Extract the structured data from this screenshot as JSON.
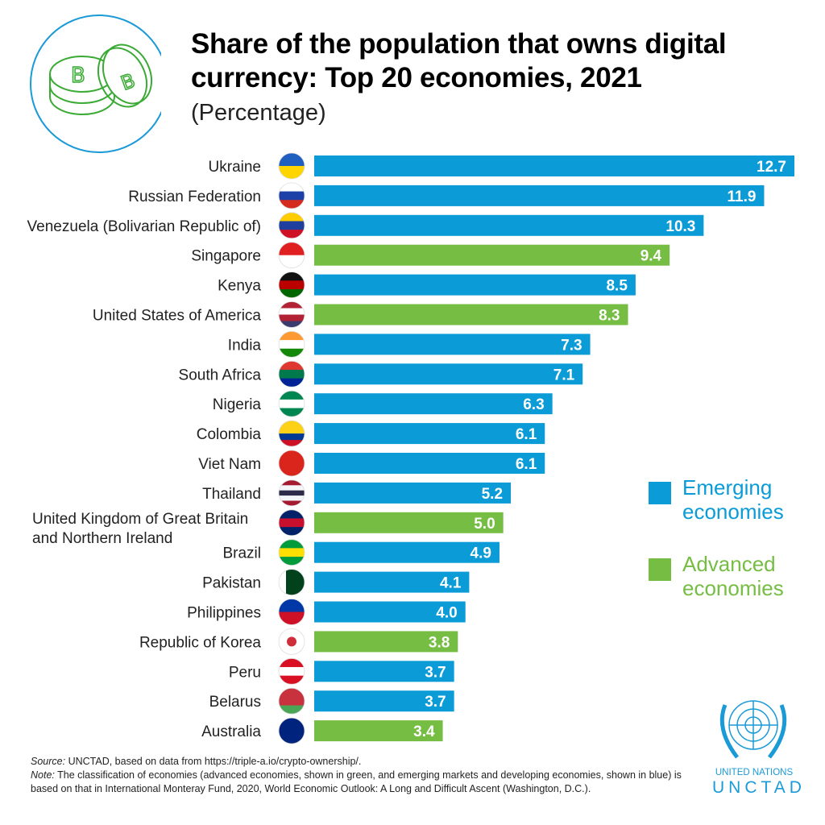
{
  "header": {
    "title_line1": "Share of the population that owns digital",
    "title_line2": "currency: Top 20 economies, 2021",
    "subtitle": "(Percentage)",
    "icon": "bitcoin-coins-icon"
  },
  "chart_data": {
    "type": "bar",
    "orientation": "horizontal",
    "title": "Share of the population that owns digital currency: Top 20 economies, 2021",
    "subtitle": "(Percentage)",
    "categories": [
      "Ukraine",
      "Russian Federation",
      "Venezuela (Bolivarian Republic of)",
      "Singapore",
      "Kenya",
      "United States of America",
      "India",
      "South Africa",
      "Nigeria",
      "Colombia",
      "Viet Nam",
      "Thailand",
      "United Kingdom of Great Britain and Northern Ireland",
      "Brazil",
      "Pakistan",
      "Philippines",
      "Republic of Korea",
      "Peru",
      "Belarus",
      "Australia"
    ],
    "values": [
      12.7,
      11.9,
      10.3,
      9.4,
      8.5,
      8.3,
      7.3,
      7.1,
      6.3,
      6.1,
      6.1,
      5.2,
      5.0,
      4.9,
      4.1,
      4.0,
      3.8,
      3.7,
      3.7,
      3.4
    ],
    "groups": [
      "Emerging",
      "Emerging",
      "Emerging",
      "Advanced",
      "Emerging",
      "Advanced",
      "Emerging",
      "Emerging",
      "Emerging",
      "Emerging",
      "Emerging",
      "Emerging",
      "Advanced",
      "Emerging",
      "Emerging",
      "Emerging",
      "Advanced",
      "Emerging",
      "Emerging",
      "Advanced"
    ],
    "value_labels": [
      "12.7",
      "11.9",
      "10.3",
      "9.4",
      "8.5",
      "8.3",
      "7.3",
      "7.1",
      "6.3",
      "6.1",
      "6.1",
      "5.2",
      "5.0",
      "4.9",
      "4.1",
      "4.0",
      "3.8",
      "3.7",
      "3.7",
      "3.4"
    ],
    "xlim": [
      0,
      12.7
    ],
    "grid": false,
    "legend": {
      "position": "right",
      "entries": [
        {
          "label": "Emerging economies",
          "color": "#0b9bd7"
        },
        {
          "label": "Advanced economies",
          "color": "#76bd43"
        }
      ]
    },
    "colors": {
      "Emerging": "#0b9bd7",
      "Advanced": "#76bd43"
    }
  },
  "flags": [
    [
      "#1f5fbf",
      "#ffd500"
    ],
    [
      "#ffffff",
      "#1c3fa8",
      "#d52b1e"
    ],
    [
      "#ffcc00",
      "#1f3f9f",
      "#cf1126"
    ],
    [
      "#e02020",
      "#ffffff"
    ],
    [
      "#111111",
      "#bb0000",
      "#006600"
    ],
    [
      "#b22234",
      "#ffffff",
      "#b22234",
      "#3c3b6e"
    ],
    [
      "#ff9933",
      "#ffffff",
      "#138808"
    ],
    [
      "#de3831",
      "#007a4d",
      "#002395"
    ],
    [
      "#008751",
      "#ffffff",
      "#008751"
    ],
    [
      "#fcd116",
      "#fcd116",
      "#003893",
      "#ce1126"
    ],
    [
      "#da251d"
    ],
    [
      "#a51931",
      "#f4f5f8",
      "#2d2a4a",
      "#f4f5f8",
      "#a51931"
    ],
    [
      "#012169",
      "#c8102e",
      "#012169"
    ],
    [
      "#009c3b",
      "#ffdf00",
      "#009c3b"
    ],
    [
      "#01411c"
    ],
    [
      "#0038a8",
      "#ce1126"
    ],
    [
      "#ffffff"
    ],
    [
      "#d91023",
      "#ffffff",
      "#d91023"
    ],
    [
      "#c8313e",
      "#c8313e",
      "#4aa657"
    ],
    [
      "#00247d"
    ]
  ],
  "footer": {
    "source_label": "Source:",
    "source_text": " UNCTAD, based on data from https://triple-a.io/crypto-ownership/.",
    "note_label": "Note:",
    "note_text": " The classification of economies (advanced economies, shown in green, and emerging markets and developing economies, shown in blue) is based on that in International Monteray Fund, 2020, World Economic Outlook: A Long and Difficult Ascent (Washington, D.C.)."
  },
  "logo": {
    "name": "UNITED NATIONS",
    "org": "UNCTAD"
  }
}
